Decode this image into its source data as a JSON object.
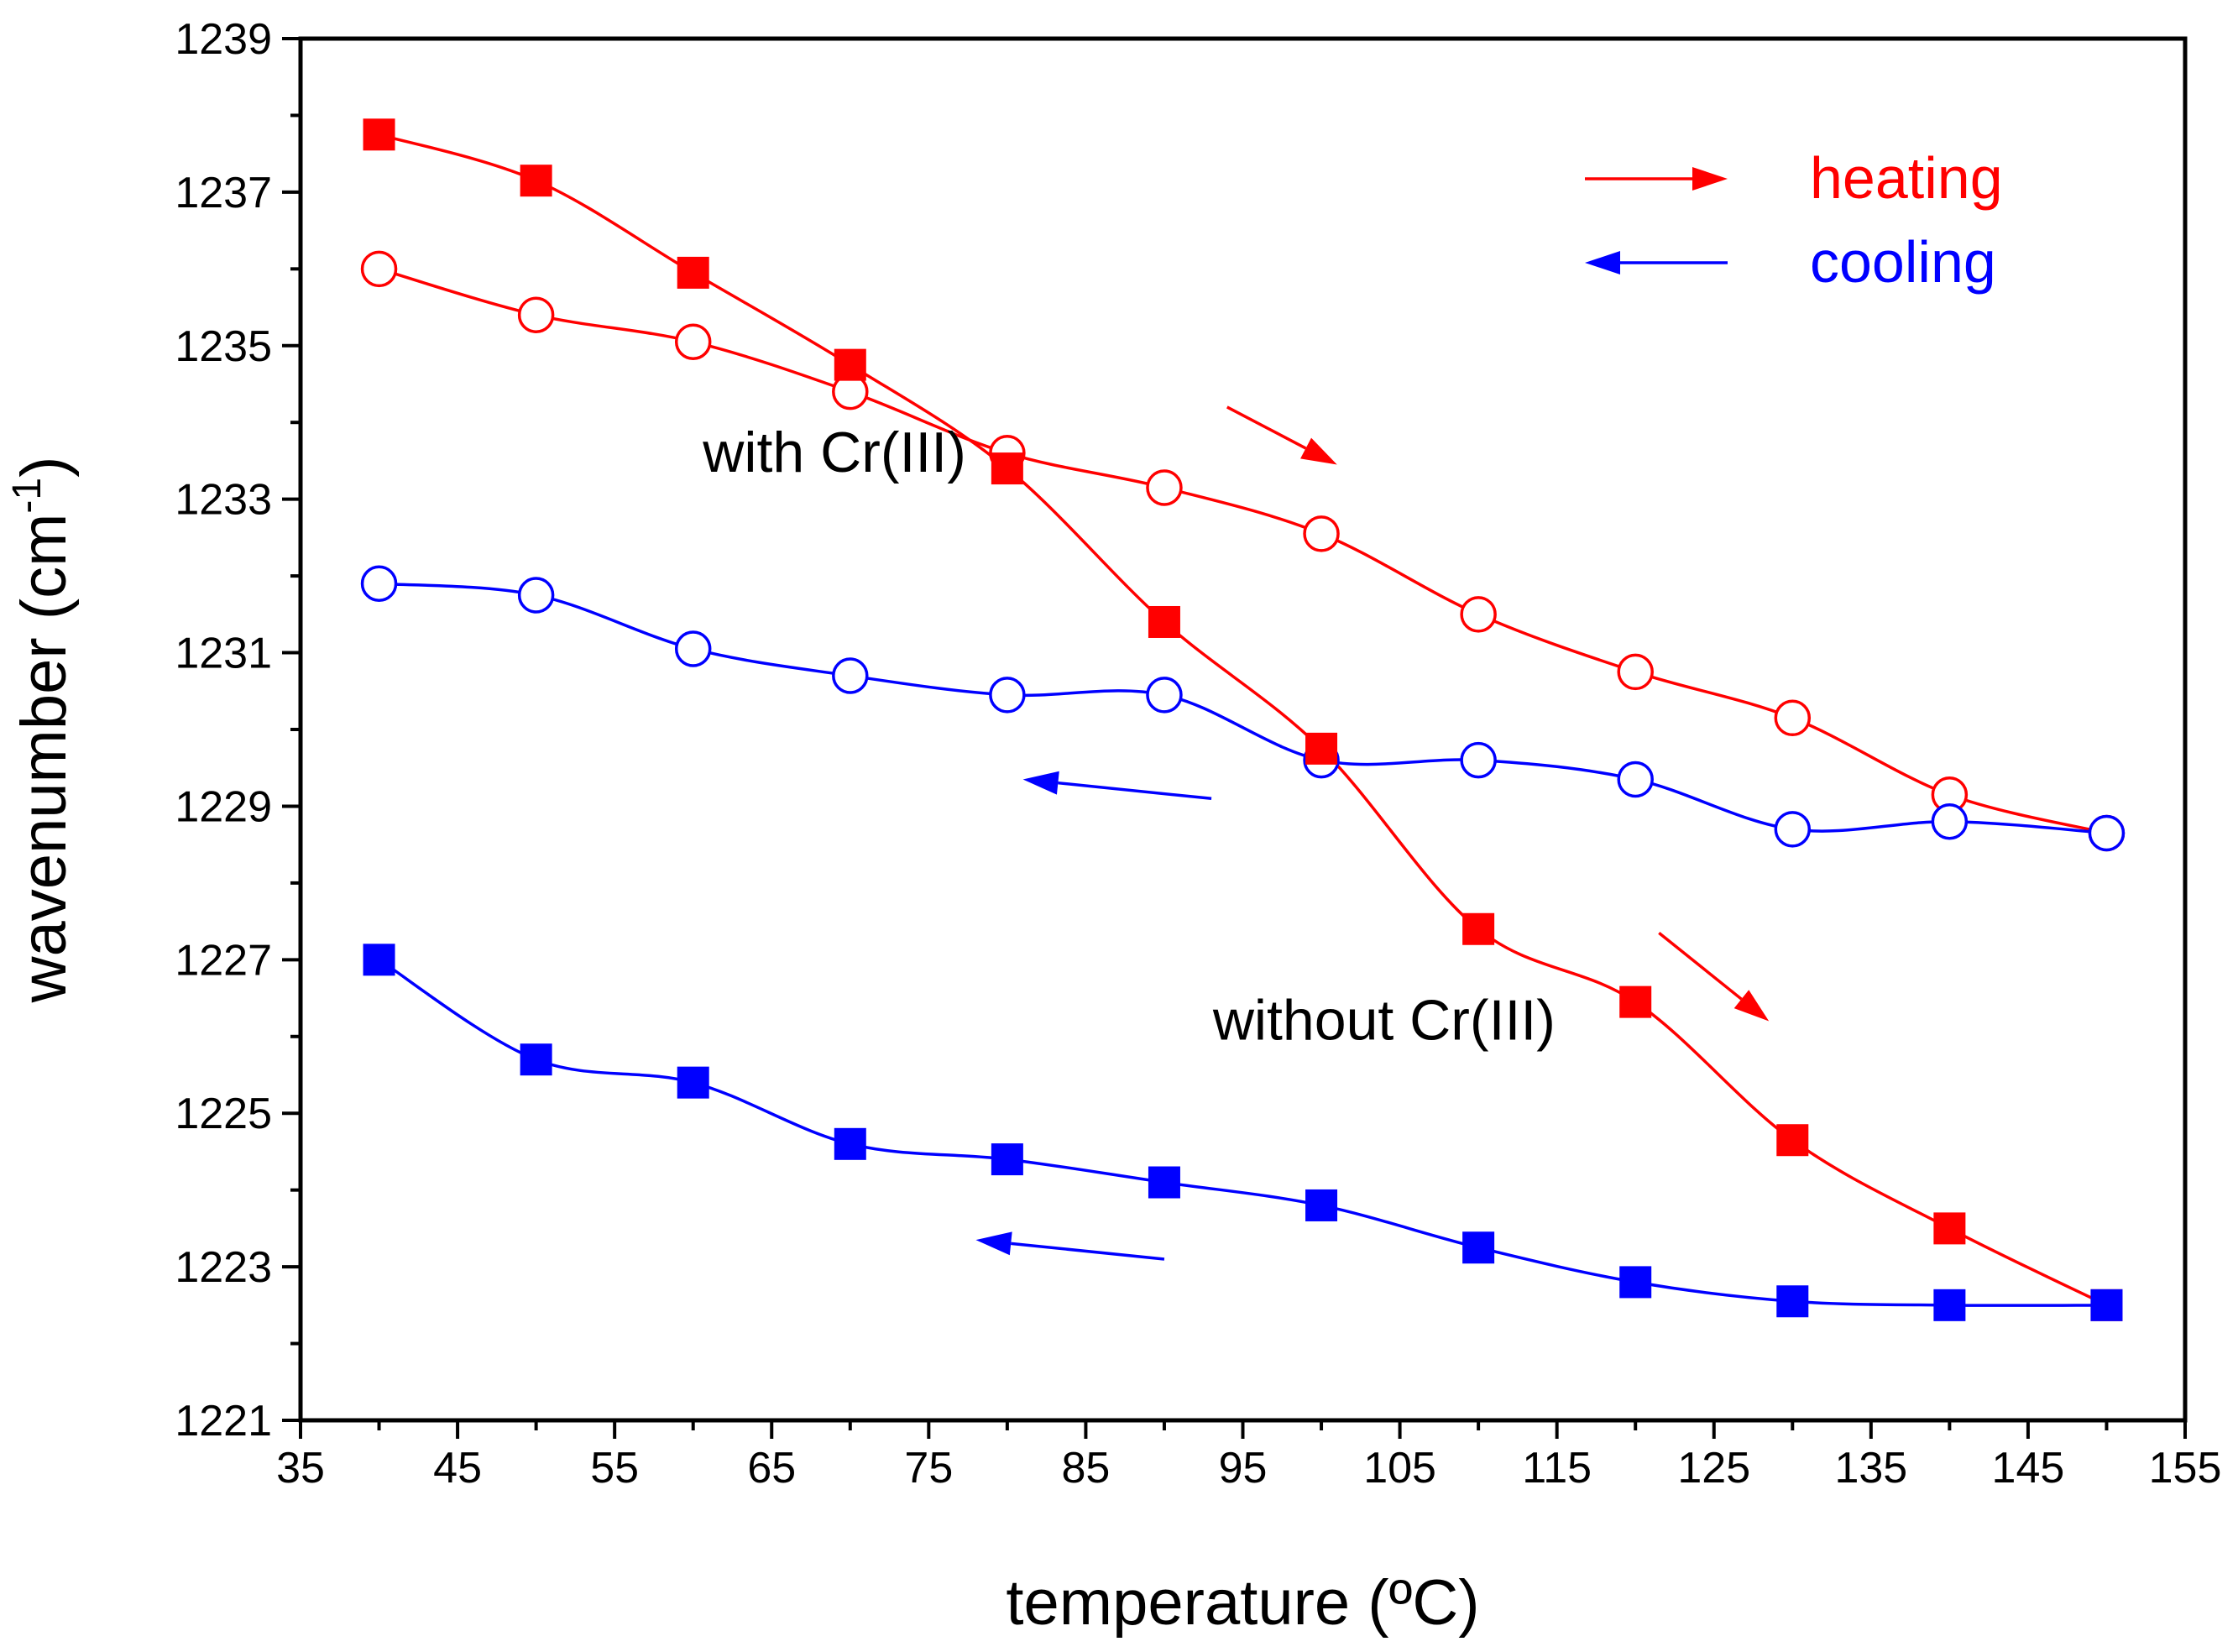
{
  "chart_data": {
    "type": "line",
    "xlabel": "temperature (ºC)",
    "ylabel": "wavenumber (cm",
    "ylabel_sup": "-1",
    "ylabel_close": ")",
    "xlim": [
      35,
      155
    ],
    "ylim": [
      1221,
      1239
    ],
    "xticks": [
      "35",
      "45",
      "55",
      "65",
      "75",
      "85",
      "95",
      "105",
      "115",
      "125",
      "135",
      "145",
      "155"
    ],
    "yticks": [
      "1221",
      "1223",
      "1225",
      "1227",
      "1229",
      "1231",
      "1233",
      "1235",
      "1237",
      "1239"
    ],
    "x": [
      40,
      50,
      60,
      70,
      80,
      90,
      100,
      110,
      120,
      130,
      140,
      150
    ],
    "series": [
      {
        "name": "with Cr(III) heating",
        "color": "#ff0000",
        "marker": "circle-open",
        "values": [
          1236.0,
          1235.4,
          1235.05,
          1234.4,
          1233.6,
          1233.15,
          1232.55,
          1231.5,
          1230.75,
          1230.15,
          1229.15,
          1228.65
        ]
      },
      {
        "name": "with Cr(III) cooling",
        "color": "#0000ff",
        "marker": "circle-open",
        "values": [
          1231.9,
          1231.75,
          1231.05,
          1230.7,
          1230.45,
          1230.45,
          1229.6,
          1229.6,
          1229.35,
          1228.7,
          1228.8,
          1228.65
        ]
      },
      {
        "name": "without Cr(III) heating",
        "color": "#ff0000",
        "marker": "square-filled",
        "values": [
          1237.75,
          1237.15,
          1235.95,
          1234.75,
          1233.4,
          1231.4,
          1229.75,
          1227.4,
          1226.45,
          1224.65,
          1223.5,
          1222.5
        ]
      },
      {
        "name": "without Cr(III) cooling",
        "color": "#0000ff",
        "marker": "square-filled",
        "values": [
          1227.0,
          1225.7,
          1225.4,
          1224.6,
          1224.4,
          1224.1,
          1223.8,
          1223.25,
          1222.8,
          1222.55,
          1222.5,
          1222.5
        ]
      }
    ],
    "legend": {
      "position": "top-right",
      "entries": [
        {
          "label": "heating",
          "color": "#ff0000",
          "direction": "right"
        },
        {
          "label": "cooling",
          "color": "#0000ff",
          "direction": "left"
        }
      ]
    },
    "annotations": [
      {
        "text": "with Cr(III)",
        "x": 69,
        "y": 1233.6
      },
      {
        "text": "without Cr(III)",
        "x": 104,
        "y": 1226.2
      }
    ],
    "arrows": [
      {
        "color": "#ff0000",
        "from": [
          94,
          1234.2
        ],
        "to": [
          101,
          1233.45
        ]
      },
      {
        "color": "#0000ff",
        "from": [
          93,
          1229.1
        ],
        "to": [
          81,
          1229.35
        ]
      },
      {
        "color": "#ff0000",
        "from": [
          121.5,
          1227.35
        ],
        "to": [
          128.5,
          1226.2
        ]
      },
      {
        "color": "#0000ff",
        "from": [
          90,
          1223.1
        ],
        "to": [
          78,
          1223.35
        ]
      }
    ]
  }
}
